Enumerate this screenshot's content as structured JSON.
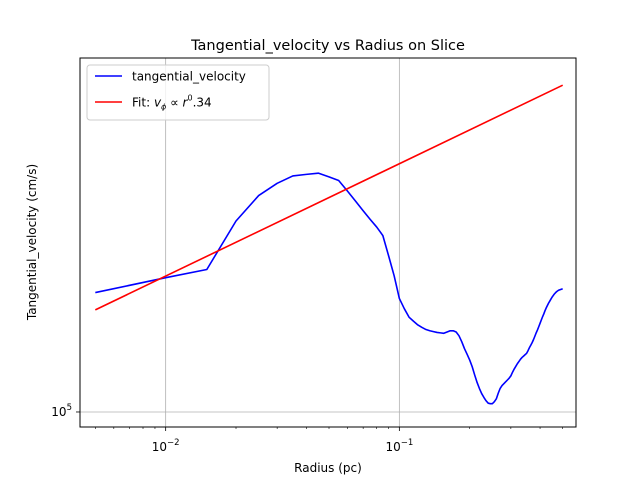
{
  "chart_data": {
    "type": "line",
    "title": "Tangential_velocity vs Radius on Slice",
    "xlabel": "Radius (pc)",
    "ylabel": "Tangential_velocity (cm/s)",
    "xscale": "log",
    "yscale": "log",
    "xlim": [
      0.0043,
      0.57
    ],
    "ylim": [
      97000,
      205000
    ],
    "grid": true,
    "legend_position": "upper-left",
    "x_ticks": [
      {
        "value": 0.01,
        "base": "10",
        "exp": "−2"
      },
      {
        "value": 0.1,
        "base": "10",
        "exp": "−1"
      }
    ],
    "y_ticks": [
      {
        "value": 100000,
        "base": "10",
        "exp": "5"
      }
    ],
    "series": [
      {
        "name": "tangential_velocity",
        "color": "#0000ff",
        "x": [
          0.005,
          0.01,
          0.015,
          0.02,
          0.025,
          0.03,
          0.035,
          0.04,
          0.045,
          0.05,
          0.055,
          0.06,
          0.065,
          0.07,
          0.075,
          0.08,
          0.085,
          0.09,
          0.095,
          0.1,
          0.105,
          0.11,
          0.115,
          0.12,
          0.125,
          0.13,
          0.135,
          0.14,
          0.145,
          0.15,
          0.155,
          0.16,
          0.165,
          0.17,
          0.175,
          0.18,
          0.185,
          0.19,
          0.195,
          0.2,
          0.205,
          0.21,
          0.215,
          0.22,
          0.225,
          0.23,
          0.235,
          0.24,
          0.245,
          0.25,
          0.255,
          0.26,
          0.265,
          0.27,
          0.275,
          0.28,
          0.285,
          0.29,
          0.295,
          0.3,
          0.305,
          0.31,
          0.315,
          0.32,
          0.325,
          0.33,
          0.335,
          0.34,
          0.345,
          0.35,
          0.355,
          0.36,
          0.365,
          0.37,
          0.375,
          0.38,
          0.385,
          0.39,
          0.395,
          0.4,
          0.405,
          0.41,
          0.415,
          0.42,
          0.425,
          0.43,
          0.435,
          0.44,
          0.445,
          0.45,
          0.455,
          0.46,
          0.465,
          0.47,
          0.475,
          0.48,
          0.485,
          0.49,
          0.495,
          0.5
        ],
        "y": [
          127400,
          131300,
          133500,
          147300,
          155100,
          159000,
          161400,
          161900,
          162300,
          161100,
          159900,
          156500,
          153300,
          150400,
          147800,
          145500,
          143000,
          137200,
          131800,
          125900,
          123300,
          121200,
          120200,
          119300,
          118700,
          118200,
          117900,
          117700,
          117500,
          117400,
          117300,
          117600,
          117900,
          117900,
          117600,
          116700,
          115300,
          113700,
          112400,
          111100,
          109600,
          107800,
          106200,
          104900,
          103800,
          103000,
          102300,
          101800,
          101700,
          101700,
          102100,
          102700,
          103900,
          104900,
          105500,
          105900,
          106300,
          106700,
          107100,
          107600,
          108400,
          109100,
          109700,
          110300,
          110800,
          111300,
          111700,
          112000,
          112300,
          112600,
          113200,
          113900,
          114500,
          115100,
          115800,
          116600,
          117400,
          118100,
          118900,
          119700,
          120500,
          121300,
          122000,
          122800,
          123500,
          124100,
          124700,
          125200,
          125700,
          126200,
          126600,
          127000,
          127300,
          127600,
          127800,
          128000,
          128100,
          128200,
          128300,
          128300
        ]
      },
      {
        "name": "Fit: ",
        "name_math": "v",
        "name_sub": "ϕ",
        "name_prop": " ∝ ",
        "name_r": "r",
        "name_sup": "0",
        "name_tail": ".34",
        "color": "#ff0000",
        "x": [
          0.005,
          0.5
        ],
        "y": [
          123000,
          194000
        ]
      }
    ]
  }
}
